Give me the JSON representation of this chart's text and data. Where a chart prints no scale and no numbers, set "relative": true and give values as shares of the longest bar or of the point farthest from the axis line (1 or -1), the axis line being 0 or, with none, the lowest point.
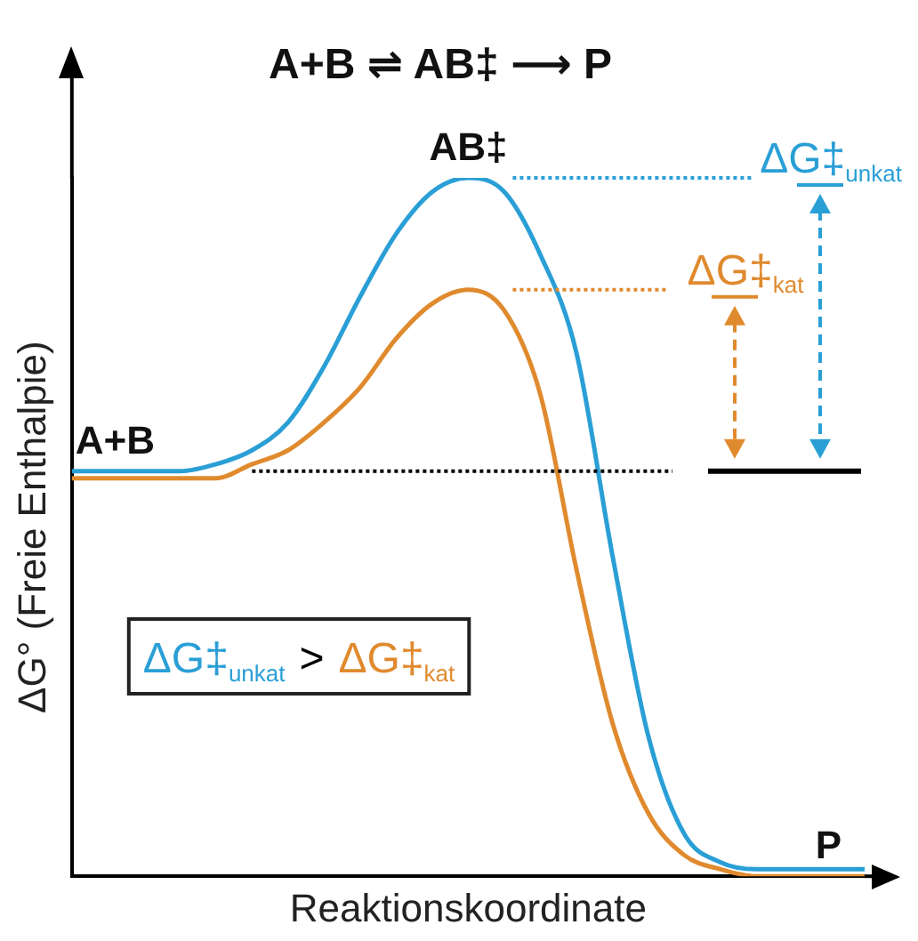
{
  "chart_data": {
    "type": "line",
    "relative": true,
    "title": "A+B ⇌ AB‡ ⟶ P",
    "xlabel": "Reaktionskoordinate",
    "ylabel": "ΔG° (Freie Enthalpie)",
    "marker": "none",
    "legend": false,
    "grid": false,
    "categories": [
      null,
      null,
      null,
      null,
      null,
      null,
      null,
      null,
      null,
      null,
      null,
      null,
      null,
      null,
      null,
      null,
      null,
      null,
      null,
      null,
      null,
      null,
      null
    ],
    "series": [
      {
        "color": "#2a9fd6",
        "values": [
          0.58,
          0.58,
          0.58,
          0.58,
          0.59,
          0.61,
          0.65,
          0.73,
          0.83,
          0.92,
          0.98,
          1,
          0.98,
          0.89,
          0.75,
          0.46,
          0.2,
          0.06,
          0.02,
          0.01,
          0.01,
          0.01,
          0.01
        ]
      },
      {
        "color": "#e08a2e",
        "values": [
          0.57,
          0.57,
          0.57,
          0.57,
          0.57,
          0.59,
          0.61,
          0.65,
          0.7,
          0.77,
          0.82,
          0.84,
          0.81,
          0.69,
          0.44,
          0.22,
          0.09,
          0.03,
          0.01,
          0,
          0,
          0,
          0
        ]
      }
    ],
    "ref_lines": [
      {
        "axis": "y",
        "value": 1,
        "label": "ΔG‡$_{unkat}$",
        "color": "#2a9fd6",
        "line_style": "dotted"
      },
      {
        "axis": "y",
        "value": 0.84,
        "label": "ΔG‡$_{kat}$",
        "color": "#e08a2e",
        "line_style": "dotted"
      },
      {
        "axis": "y",
        "value": 0.58,
        "color": "#000000",
        "line_style": "dotted"
      },
      {
        "axis": "y",
        "value": 0.58,
        "color": "#000000",
        "line_style": "solid"
      }
    ],
    "annotations": [
      {
        "text": "A+B",
        "y": 0.58
      },
      {
        "text": "AB‡",
        "y": 1
      },
      {
        "text": "P",
        "y": 0
      },
      "ΔG‡$_{unkat}$ > ΔG‡$_{kat}$"
    ]
  }
}
